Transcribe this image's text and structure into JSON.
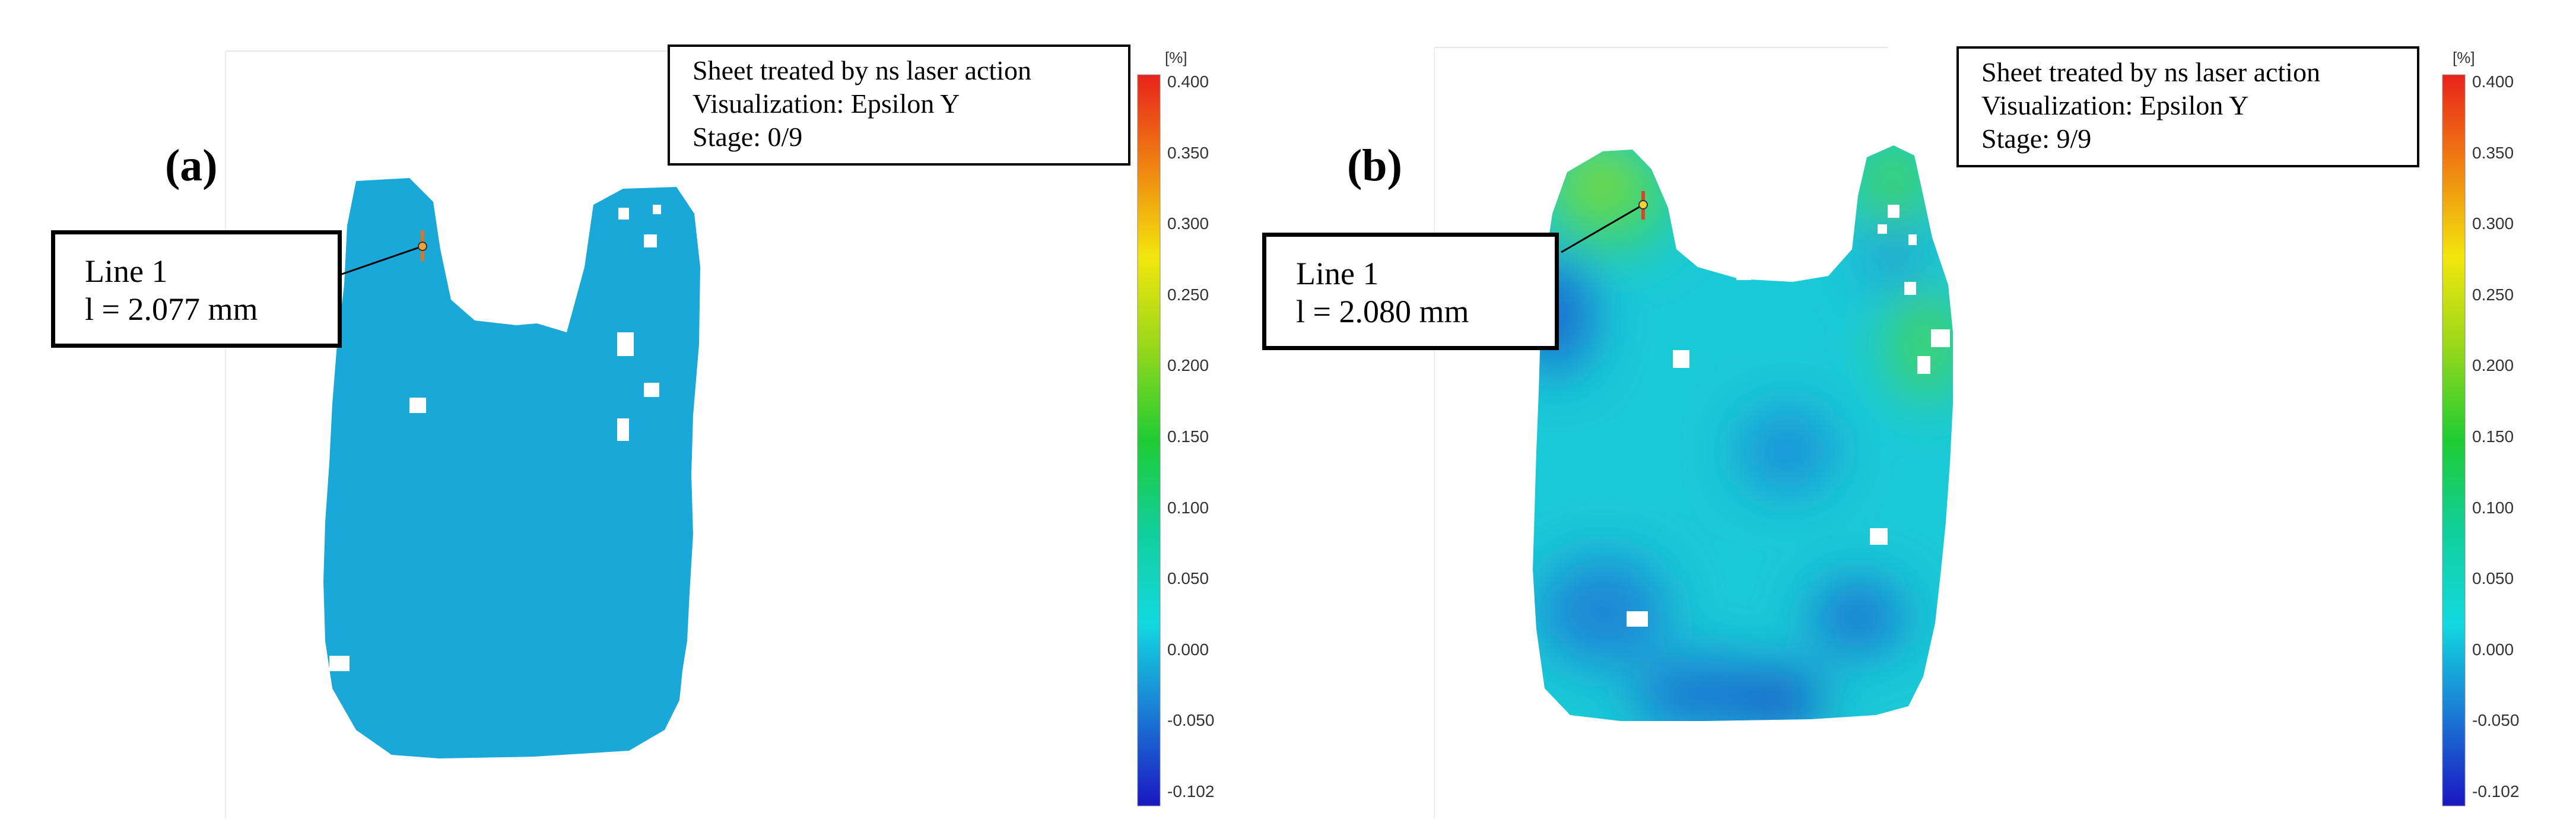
{
  "chart_data": [
    {
      "type": "heatmap",
      "panel_label": "(a)",
      "info": {
        "line1": "Sheet treated by ns laser action",
        "line2": "Visualization: Epsilon Y",
        "line3": "Stage: 0/9"
      },
      "measurement": {
        "name": "Line 1",
        "length": "l = 2.077 mm"
      },
      "colorbar": {
        "unit": "[%]",
        "ticks": [
          "0.400",
          "0.350",
          "0.300",
          "0.250",
          "0.200",
          "0.150",
          "0.100",
          "0.050",
          "0.000",
          "-0.050",
          "-0.102"
        ],
        "min": -0.102,
        "max": 0.4
      },
      "field": {
        "uniform_value": 0.028,
        "color": "#1aa8d8"
      }
    },
    {
      "type": "heatmap",
      "panel_label": "(b)",
      "info": {
        "line1": "Sheet treated by ns laser action",
        "line2": "Visualization: Epsilon Y",
        "line3": "Stage: 9/9"
      },
      "measurement": {
        "name": "Line 1",
        "length": "l = 2.080 mm"
      },
      "colorbar": {
        "unit": "[%]",
        "ticks": [
          "0.400",
          "0.350",
          "0.300",
          "0.250",
          "0.200",
          "0.150",
          "0.100",
          "0.050",
          "0.000",
          "-0.050",
          "-0.102"
        ],
        "min": -0.102,
        "max": 0.4
      },
      "field": {
        "base_value": 0.05,
        "max_value": 0.2,
        "min_value": -0.07
      }
    }
  ]
}
